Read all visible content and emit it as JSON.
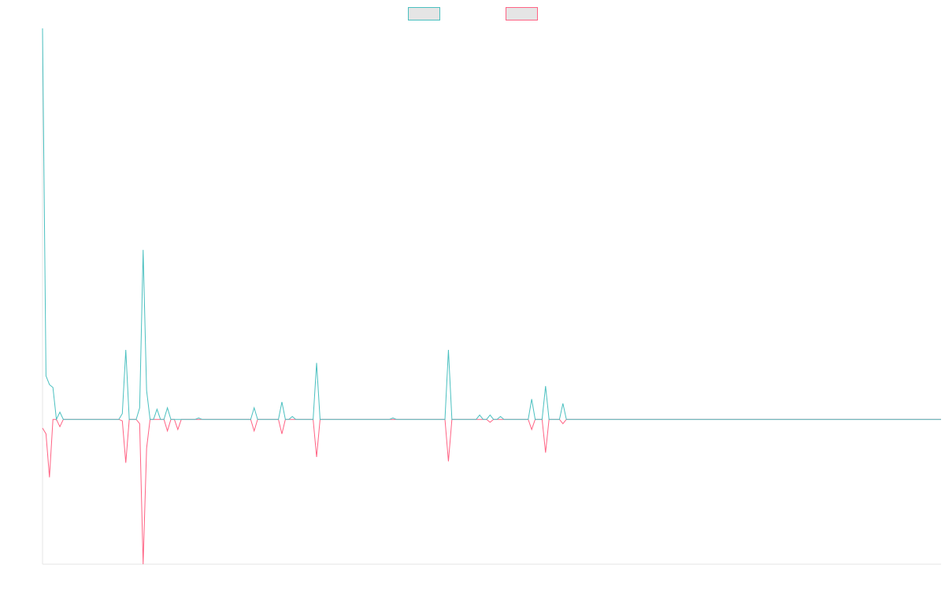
{
  "chart_data": {
    "type": "line",
    "title": "",
    "xlabel": "",
    "ylabel": "",
    "grid": false,
    "legend_position": "top",
    "x_count": 260,
    "ylim": [
      -10,
      27
    ],
    "series": [
      {
        "color": "#4bc0c0",
        "fill": "#e5e5e5",
        "points": [
          [
            0,
            27
          ],
          [
            1,
            3
          ],
          [
            2,
            2.4
          ],
          [
            3,
            2.2
          ],
          [
            5,
            0.5
          ],
          [
            23,
            0.4
          ],
          [
            24,
            4.8
          ],
          [
            28,
            0.8
          ],
          [
            29,
            11.7
          ],
          [
            30,
            2
          ],
          [
            33,
            0.7
          ],
          [
            36,
            0.8
          ],
          [
            45,
            0.1
          ],
          [
            61,
            0.8
          ],
          [
            69,
            1.2
          ],
          [
            72,
            0.2
          ],
          [
            79,
            3.9
          ],
          [
            101,
            0.1
          ],
          [
            117,
            4.8
          ],
          [
            126,
            0.3
          ],
          [
            129,
            0.3
          ],
          [
            132,
            0.2
          ],
          [
            141,
            1.4
          ],
          [
            145,
            2.3
          ],
          [
            150,
            1.1
          ]
        ]
      },
      {
        "color": "#ff6384",
        "fill": "#e5e5e5",
        "points": [
          [
            0,
            -0.6
          ],
          [
            1,
            -1
          ],
          [
            2,
            -4
          ],
          [
            5,
            -0.5
          ],
          [
            23,
            -0.1
          ],
          [
            24,
            -3
          ],
          [
            28,
            -0.3
          ],
          [
            29,
            -10
          ],
          [
            30,
            -2
          ],
          [
            36,
            -0.8
          ],
          [
            39,
            -0.7
          ],
          [
            61,
            -0.8
          ],
          [
            69,
            -1
          ],
          [
            79,
            -2.6
          ],
          [
            117,
            -2.9
          ],
          [
            129,
            -0.2
          ],
          [
            141,
            -0.7
          ],
          [
            145,
            -2.3
          ],
          [
            150,
            -0.3
          ]
        ]
      }
    ]
  }
}
